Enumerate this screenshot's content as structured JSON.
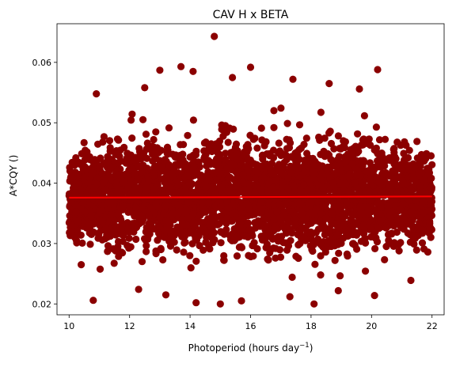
{
  "chart_data": {
    "type": "scatter",
    "title": "CAV H x BETA",
    "xlabel": "Photoperiod (hours day",
    "xlabel_superscript": "−1",
    "xlabel_suffix": ")",
    "ylabel": "A*CQY ()",
    "xlim": [
      9.6,
      22.4
    ],
    "ylim": [
      0.0182,
      0.0664
    ],
    "xticks": [
      10,
      12,
      14,
      16,
      18,
      20,
      22
    ],
    "yticks": [
      0.02,
      0.03,
      0.04,
      0.05,
      0.06
    ],
    "xtick_labels": [
      "10",
      "12",
      "14",
      "16",
      "18",
      "20",
      "22"
    ],
    "ytick_labels": [
      "0.02",
      "0.03",
      "0.04",
      "0.05",
      "0.06"
    ],
    "grid": false,
    "colors": {
      "points": "#8b0000",
      "fit_line": "#ff0000"
    },
    "fit_line": {
      "x": [
        10.0,
        22.0
      ],
      "y": [
        0.0376,
        0.0378
      ]
    },
    "x_range_of_points": [
      10.0,
      22.0
    ],
    "bulk_y_range_of_points": [
      0.025,
      0.052
    ],
    "outlier_points": [
      {
        "x": 14.8,
        "y": 0.0643
      },
      {
        "x": 13.0,
        "y": 0.0587
      },
      {
        "x": 13.7,
        "y": 0.0593
      },
      {
        "x": 14.1,
        "y": 0.0585
      },
      {
        "x": 16.0,
        "y": 0.0592
      },
      {
        "x": 20.2,
        "y": 0.0588
      },
      {
        "x": 15.4,
        "y": 0.0575
      },
      {
        "x": 17.4,
        "y": 0.0572
      },
      {
        "x": 10.9,
        "y": 0.0548
      },
      {
        "x": 19.6,
        "y": 0.0556
      },
      {
        "x": 18.6,
        "y": 0.0565
      },
      {
        "x": 12.5,
        "y": 0.0558
      },
      {
        "x": 15.0,
        "y": 0.02
      },
      {
        "x": 18.1,
        "y": 0.02
      },
      {
        "x": 10.8,
        "y": 0.0206
      },
      {
        "x": 14.2,
        "y": 0.0202
      },
      {
        "x": 15.7,
        "y": 0.0205
      },
      {
        "x": 20.1,
        "y": 0.0214
      },
      {
        "x": 13.2,
        "y": 0.0215
      },
      {
        "x": 17.3,
        "y": 0.0212
      },
      {
        "x": 12.3,
        "y": 0.0224
      },
      {
        "x": 18.9,
        "y": 0.0222
      },
      {
        "x": 21.3,
        "y": 0.0239
      },
      {
        "x": 10.4,
        "y": 0.0265
      }
    ]
  }
}
